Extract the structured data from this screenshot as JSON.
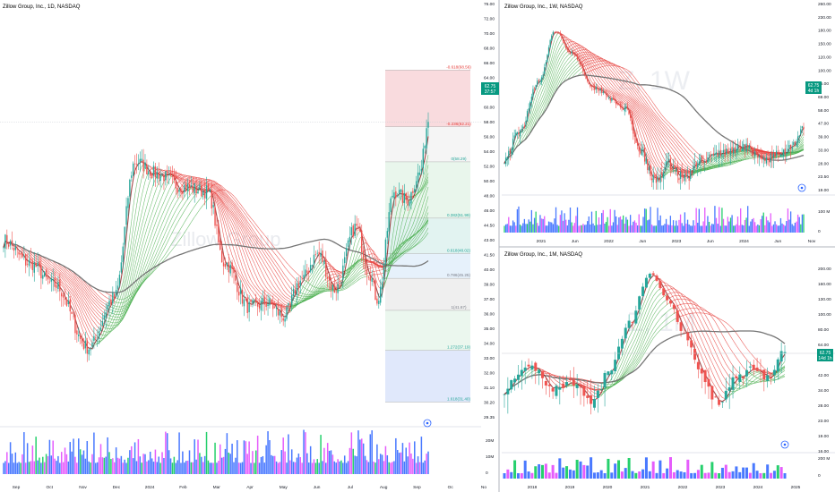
{
  "panels": {
    "daily": {
      "title": "Zillow Group, Inc., 1D, NASDAQ",
      "watermark": "Zillow Group",
      "price_axis": [
        "76.00",
        "72.00",
        "70.00",
        "68.00",
        "66.00",
        "64.00",
        "62.00",
        "60.00",
        "58.00",
        "56.00",
        "54.00",
        "52.00",
        "50.00",
        "48.00",
        "46.00",
        "44.50",
        "43.00",
        "41.50",
        "40.00",
        "39.00",
        "37.00",
        "36.00",
        "35.00",
        "34.00",
        "33.00",
        "32.00",
        "31.10",
        "30.20",
        "29.35"
      ],
      "time_axis": [
        "Sep",
        "Oct",
        "Nov",
        "Dec",
        "2024",
        "Feb",
        "Mar",
        "Apr",
        "May",
        "Jun",
        "Jul",
        "Aug",
        "Sep",
        "Oc",
        "No"
      ],
      "price_tag": {
        "price": "62.75",
        "countdown": "37:57"
      }
    },
    "weekly": {
      "title": "Zillow Group, Inc., 1W, NASDAQ",
      "watermark": "Z, 1W",
      "price_axis": [
        "260.00",
        "230.00",
        "180.00",
        "150.00",
        "120.00",
        "100.00",
        "85.00",
        "69.00",
        "58.00",
        "47.00",
        "39.00",
        "33.00",
        "28.00",
        "23.50",
        "19.00"
      ],
      "vol_axis": [
        "100 M",
        "0"
      ],
      "time_axis": [
        "2021",
        "Jun",
        "2022",
        "Jun",
        "2023",
        "Jun",
        "2024",
        "Jun",
        "Nov"
      ],
      "price_tag": {
        "price": "62.75",
        "countdown": "4d 1h"
      }
    },
    "monthly": {
      "title": "Zillow Group, Inc., 1M, NASDAQ",
      "watermark": "Z, 1M",
      "price_axis": [
        "200.00",
        "160.00",
        "130.00",
        "100.00",
        "80.00",
        "64.00",
        "52.00",
        "42.00",
        "34.00",
        "28.00",
        "23.00",
        "19.00",
        "16.00"
      ],
      "vol_axis": [
        "200 M",
        "0"
      ],
      "time_axis": [
        "2018",
        "2019",
        "2020",
        "2021",
        "2022",
        "2023",
        "2024",
        "2025"
      ],
      "price_tag": {
        "price": "62.75",
        "countdown": "14d 1h"
      }
    }
  },
  "fib_levels": [
    {
      "label": "-0.618(68.56)"
    },
    {
      "label": "-0.236(62.21)"
    },
    {
      "label": "0(58.29)"
    },
    {
      "label": "0.382(51.99)"
    },
    {
      "label": "0.618(48.02)"
    },
    {
      "label": "0.786(45.25)"
    },
    {
      "label": "1(41.67)"
    },
    {
      "label": "1.272(37.19)"
    },
    {
      "label": "1.618(31.40)"
    }
  ],
  "vol_axis_daily": [
    "20M",
    "10M",
    "0"
  ],
  "colors": {
    "up": "#26a69a",
    "down": "#ef5350",
    "ribbon_up": "#4caf50",
    "ribbon_down": "#e53935",
    "avg": "#757575",
    "price_tag": "#089981",
    "vol_blue": "#2962ff",
    "vol_magenta": "#e040fb",
    "vol_green": "#00c853"
  },
  "chart_data": [
    {
      "type": "candlestick",
      "title": "Zillow Group, Inc., 1D, NASDAQ",
      "x": [
        "Sep",
        "Oct",
        "Nov",
        "Dec",
        "2024",
        "Feb",
        "Mar",
        "Apr",
        "May",
        "Jun",
        "Jul",
        "Aug",
        "Sep"
      ],
      "y_approx_close": [
        49.5,
        44.5,
        37.0,
        57.5,
        58.0,
        56.0,
        54.5,
        44.0,
        41.0,
        42.0,
        47.5,
        43.5,
        62.75
      ],
      "ylim": [
        29.35,
        76.0
      ],
      "last_price": 62.75
    },
    {
      "type": "candlestick",
      "title": "Zillow Group, Inc., 1W, NASDAQ",
      "x": [
        "2021",
        "Jun",
        "2022",
        "Jun",
        "2023",
        "Jun",
        "2024",
        "Jun",
        "Nov"
      ],
      "y_approx_close": [
        150,
        90,
        45,
        32,
        42,
        50,
        55,
        45,
        62.75
      ],
      "ylim": [
        19,
        260
      ],
      "log_scale": true,
      "last_price": 62.75
    },
    {
      "type": "candlestick",
      "title": "Zillow Group, Inc., 1M, NASDAQ",
      "x": [
        "2018",
        "2019",
        "2020",
        "2021",
        "2022",
        "2023",
        "2024",
        "2025"
      ],
      "y_approx_close": [
        42,
        37,
        45,
        150,
        45,
        42,
        47,
        62.75
      ],
      "ylim": [
        16,
        200
      ],
      "log_scale": true,
      "last_price": 62.75
    }
  ]
}
